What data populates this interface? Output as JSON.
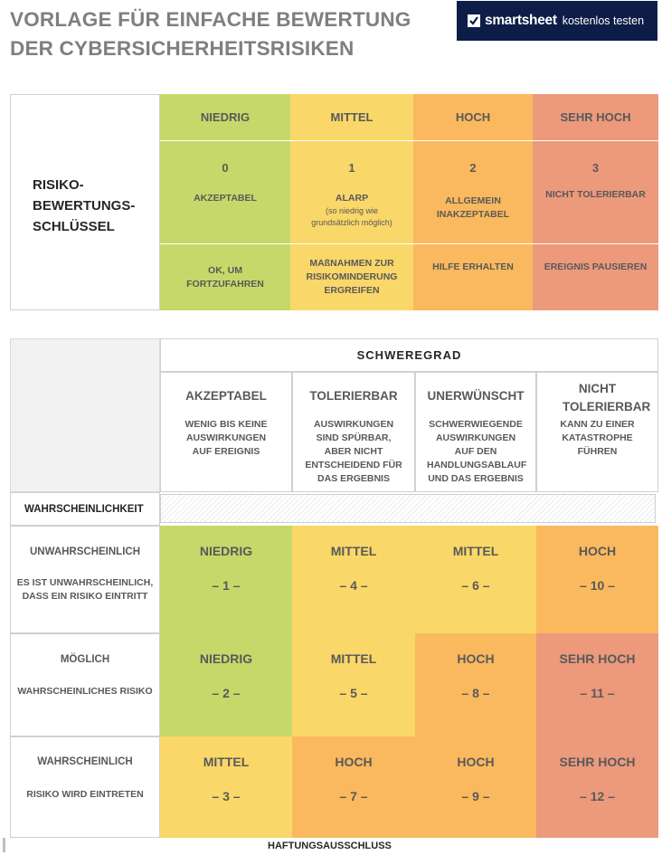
{
  "title": {
    "line1": "VORLAGE FÜR EINFACHE BEWERTUNG",
    "line2": "DER CYBERSICHERHEITSRISIKEN"
  },
  "brand": {
    "name": "smartsheet",
    "cta": "kostenlos testen",
    "icon": "check-icon",
    "color": "#0d1d48"
  },
  "key": {
    "label_lines": [
      "RISIKO-",
      "BEWERTUNGS-",
      "SCHLÜSSEL"
    ],
    "columns": [
      {
        "level": "NIEDRIG",
        "score": "0",
        "desc": "AKZEPTABEL",
        "note": "",
        "action": "OK, UM FORTZUFAHREN",
        "color": "#c7d86a"
      },
      {
        "level": "MITTEL",
        "score": "1",
        "desc": "ALARP",
        "note": "(so niedrig wie grundsätzlich möglich)",
        "action": "MAßNAHMEN ZUR RISIKOMINDERUNG ERGREIFEN",
        "color": "#fad769"
      },
      {
        "level": "HOCH",
        "score": "2",
        "desc": "ALLGEMEIN INAKZEPTABEL",
        "note": "",
        "action": "HILFE ERHALTEN",
        "color": "#fab95f"
      },
      {
        "level": "SEHR HOCH",
        "score": "3",
        "desc": "NICHT TOLERIERBAR",
        "note": "",
        "action": "EREIGNIS PAUSIEREN",
        "color": "#ec997c"
      }
    ]
  },
  "matrix": {
    "severity_label": "SCHWEREGRAD",
    "likelihood_label": "WAHRSCHEINLICHKEIT",
    "severity": [
      {
        "name": "AKZEPTABEL",
        "desc": "WENIG BIS KEINE AUSWIRKUNGEN AUF EREIGNIS"
      },
      {
        "name": "TOLERIERBAR",
        "desc": "AUSWIRKUNGEN SIND SPÜRBAR, ABER NICHT ENTSCHEIDEND FÜR DAS ERGEBNIS"
      },
      {
        "name": "UNERWÜNSCHT",
        "desc": "SCHWERWIEGENDE AUSWIRKUNGEN AUF DEN HANDLUNGSABLAUF UND DAS ERGEBNIS"
      },
      {
        "name": "NICHT TOLERIERBAR",
        "desc": "KANN ZU EINER KATASTROPHE FÜHREN"
      }
    ],
    "rows": [
      {
        "name": "UNWAHRSCHEINLICH",
        "desc": "ES IST UNWAHRSCHEINLICH, DASS EIN RISIKO EINTRITT",
        "cells": [
          {
            "level": "NIEDRIG",
            "num": "– 1 –",
            "color": "#c7d86a"
          },
          {
            "level": "MITTEL",
            "num": "– 4 –",
            "color": "#fad769"
          },
          {
            "level": "MITTEL",
            "num": "– 6 –",
            "color": "#fad769"
          },
          {
            "level": "HOCH",
            "num": "– 10 –",
            "color": "#fab95f"
          }
        ]
      },
      {
        "name": "MÖGLICH",
        "desc": "WAHRSCHEINLICHES RISIKO",
        "cells": [
          {
            "level": "NIEDRIG",
            "num": "– 2 –",
            "color": "#c7d86a"
          },
          {
            "level": "MITTEL",
            "num": "– 5 –",
            "color": "#fad769"
          },
          {
            "level": "HOCH",
            "num": "– 8 –",
            "color": "#fab95f"
          },
          {
            "level": "SEHR HOCH",
            "num": "– 11 –",
            "color": "#ec997c"
          }
        ]
      },
      {
        "name": "WAHRSCHEINLICH",
        "desc": "RISIKO WIRD EINTRETEN",
        "cells": [
          {
            "level": "MITTEL",
            "num": "– 3 –",
            "color": "#fad769"
          },
          {
            "level": "HOCH",
            "num": "– 7 –",
            "color": "#fab95f"
          },
          {
            "level": "HOCH",
            "num": "– 9 –",
            "color": "#fab95f"
          },
          {
            "level": "SEHR HOCH",
            "num": "– 12 –",
            "color": "#ec997c"
          }
        ]
      }
    ]
  },
  "footer": {
    "disclaimer": "HAFTUNGSAUSSCHLUSS"
  }
}
